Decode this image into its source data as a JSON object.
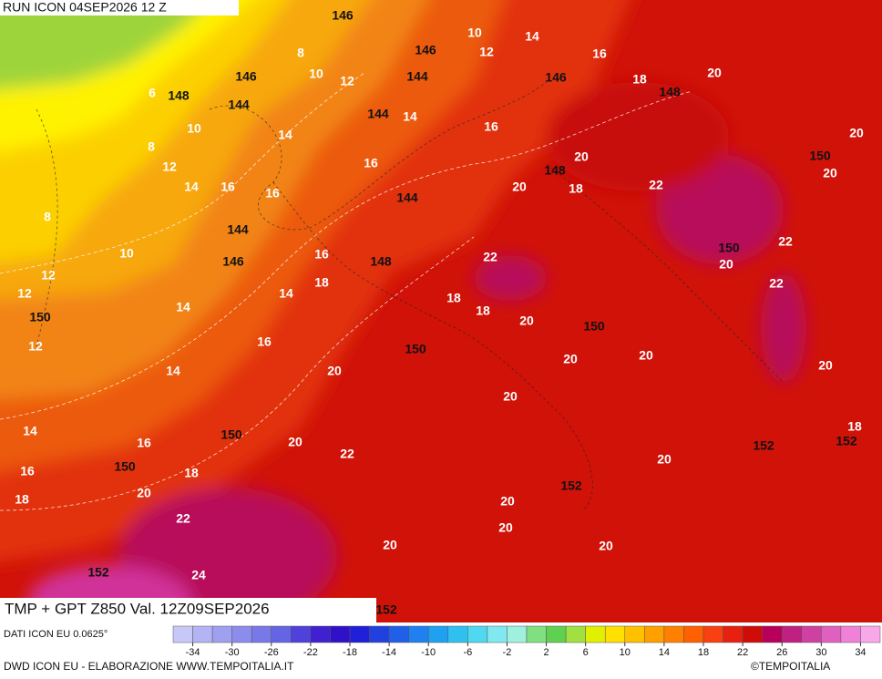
{
  "header": {
    "run": "RUN ICON 04SEP2026 12 Z",
    "field": "TMP + GPT Z850 Val. 12Z09SEP2026"
  },
  "footer": {
    "source": "DATI ICON EU 0.0625°",
    "credit": "DWD ICON EU - ELABORAZIONE WWW.TEMPOITALIA.IT",
    "copyright": "©TEMPOITALIA"
  },
  "colorbar": {
    "ticks": [
      -34,
      -30,
      -26,
      -22,
      -18,
      -14,
      -10,
      -6,
      -2,
      2,
      6,
      10,
      14,
      18,
      22,
      26,
      30,
      34
    ]
  },
  "contour_labels": {
    "geopotential": [
      146,
      146,
      146,
      144,
      146,
      148,
      144,
      148,
      144,
      148,
      150,
      144,
      144,
      146,
      148,
      150,
      150,
      150,
      150,
      150,
      152,
      152,
      150,
      152,
      152,
      152
    ],
    "temperature": [
      10,
      14,
      8,
      12,
      16,
      10,
      12,
      18,
      20,
      6,
      14,
      10,
      16,
      14,
      20,
      8,
      12,
      16,
      20,
      18,
      20,
      20,
      14,
      16,
      16,
      22,
      8,
      22,
      22,
      20,
      10,
      16,
      18,
      22,
      12,
      12,
      14,
      18,
      18,
      20,
      14,
      12,
      16,
      20,
      20,
      20,
      14,
      20,
      20,
      14,
      16,
      20,
      22,
      18,
      20,
      16,
      18,
      20,
      18,
      20,
      22,
      20,
      20,
      20,
      24
    ]
  }
}
